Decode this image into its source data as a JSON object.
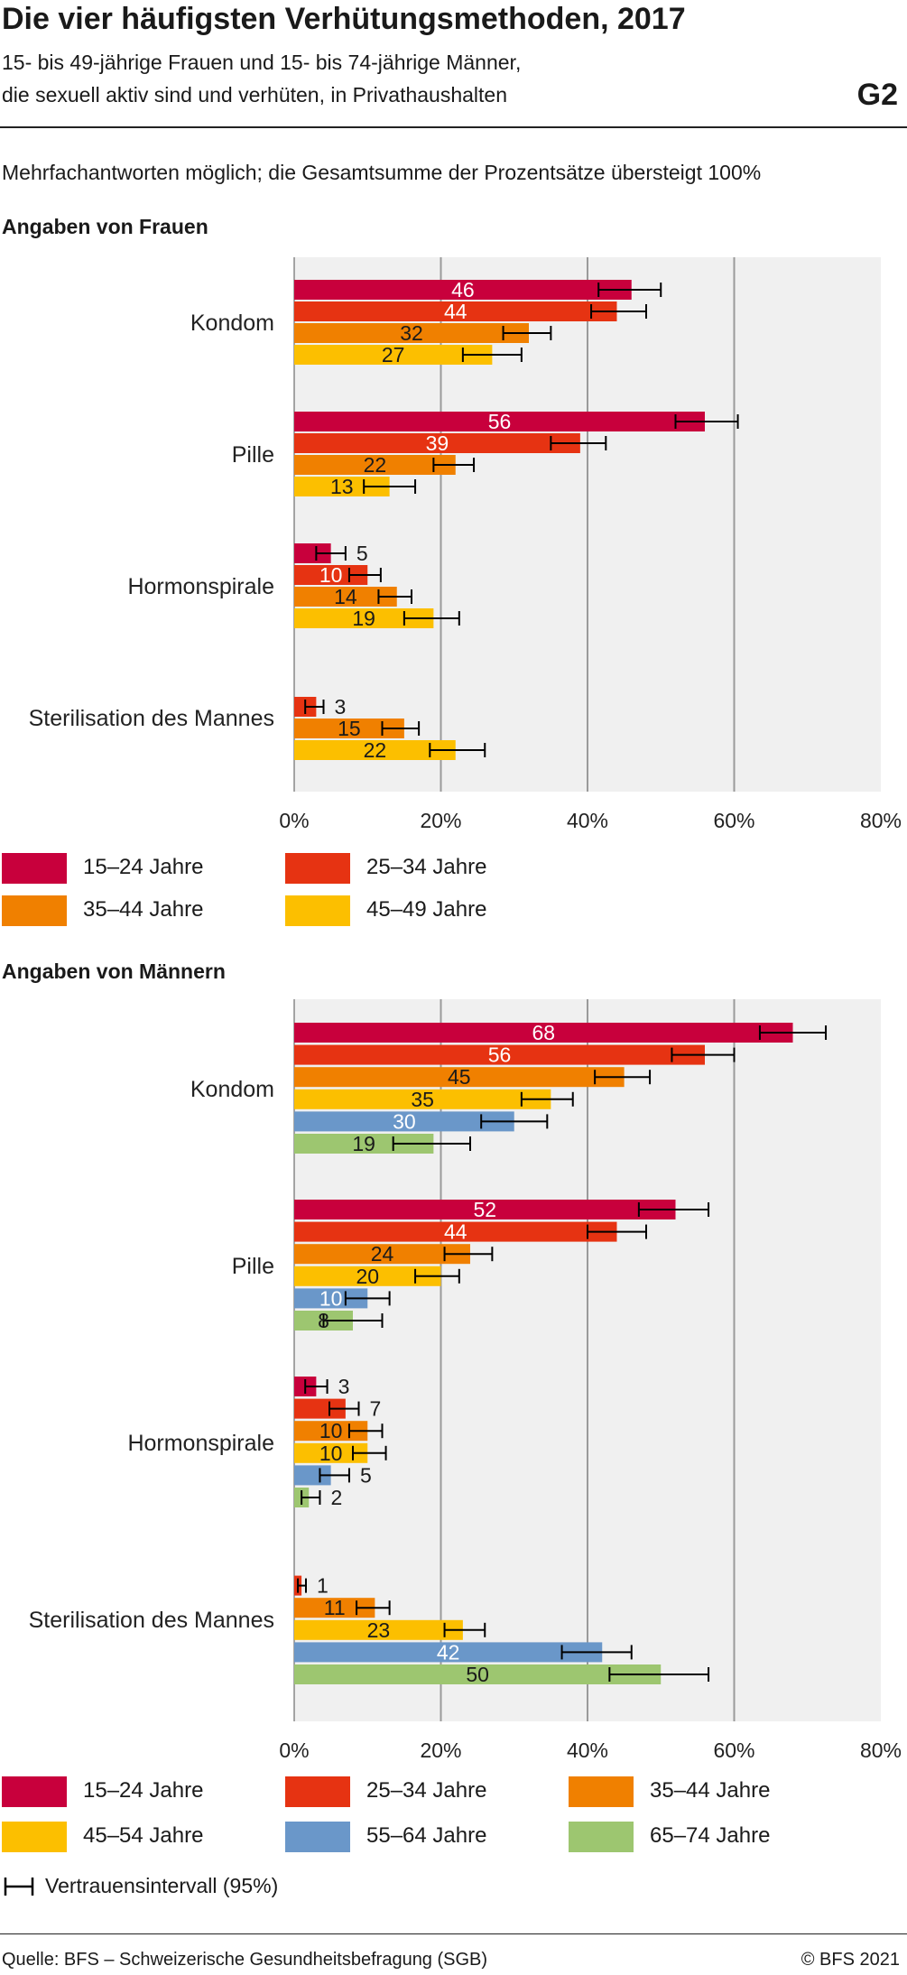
{
  "header": {
    "title": "Die vier häufigsten Verhütungsmethoden, 2017",
    "subtitle_line1": "15- bis 49-jährige Frauen und 15- bis 74-jährige Männer,",
    "subtitle_line2": "die sexuell aktiv sind und verhüten, in Privathaushalten",
    "figure_id": "G2"
  },
  "note": "Mehrfachantworten möglich; die Gesamtsumme der Prozentsätze übersteigt 100%",
  "chart_data": [
    {
      "type": "bar",
      "orientation": "horizontal",
      "title": "Angaben von Frauen",
      "categories": [
        "Kondom",
        "Pille",
        "Hormonspirale",
        "Sterilisation des Mannes"
      ],
      "xlim": [
        0,
        80
      ],
      "xticks": [
        "0%",
        "20%",
        "40%",
        "60%",
        "80%"
      ],
      "grid": true,
      "legend_position": "bottom",
      "series": [
        {
          "name": "15–24 Jahre",
          "color": "#c8003c",
          "values": [
            46,
            56,
            5,
            null
          ],
          "ci_low": [
            41.5,
            52,
            3,
            null
          ],
          "ci_high": [
            50,
            60.5,
            7,
            null
          ]
        },
        {
          "name": "25–34 Jahre",
          "color": "#e63312",
          "values": [
            44,
            39,
            10,
            3
          ],
          "ci_low": [
            40.5,
            35,
            7.5,
            1.5
          ],
          "ci_high": [
            48,
            42.5,
            11.8,
            4
          ]
        },
        {
          "name": "35–44 Jahre",
          "color": "#f08000",
          "values": [
            32,
            22,
            14,
            15
          ],
          "ci_low": [
            28.5,
            19,
            11.5,
            12
          ],
          "ci_high": [
            35,
            24.5,
            16,
            17
          ]
        },
        {
          "name": "45–49 Jahre",
          "color": "#fcbf00",
          "values": [
            27,
            13,
            19,
            22
          ],
          "ci_low": [
            23,
            9.5,
            15,
            18.5
          ],
          "ci_high": [
            31,
            16.5,
            22.5,
            26
          ]
        }
      ]
    },
    {
      "type": "bar",
      "orientation": "horizontal",
      "title": "Angaben von Männern",
      "categories": [
        "Kondom",
        "Pille",
        "Hormonspirale",
        "Sterilisation des Mannes"
      ],
      "xlim": [
        0,
        80
      ],
      "xticks": [
        "0%",
        "20%",
        "40%",
        "60%",
        "80%"
      ],
      "grid": true,
      "legend_position": "bottom",
      "series": [
        {
          "name": "15–24 Jahre",
          "color": "#c8003c",
          "values": [
            68,
            52,
            3,
            null
          ],
          "ci_low": [
            63.5,
            47,
            1.5,
            null
          ],
          "ci_high": [
            72.5,
            56.5,
            4.5,
            null
          ]
        },
        {
          "name": "25–34 Jahre",
          "color": "#e63312",
          "values": [
            56,
            44,
            7,
            1
          ],
          "ci_low": [
            51.5,
            40,
            4.8,
            0.5
          ],
          "ci_high": [
            60,
            48,
            8.8,
            1.6
          ]
        },
        {
          "name": "35–44 Jahre",
          "color": "#f08000",
          "values": [
            45,
            24,
            10,
            11
          ],
          "ci_low": [
            41,
            20.5,
            7.5,
            8.5
          ],
          "ci_high": [
            48.5,
            27,
            12,
            13
          ]
        },
        {
          "name": "45–54 Jahre",
          "color": "#fcbf00",
          "values": [
            35,
            20,
            10,
            23
          ],
          "ci_low": [
            31,
            16.5,
            8,
            20.5
          ],
          "ci_high": [
            38,
            22.5,
            12.5,
            26
          ]
        },
        {
          "name": "55–64 Jahre",
          "color": "#6a97c9",
          "values": [
            30,
            10,
            5,
            42
          ],
          "ci_low": [
            25.5,
            7,
            3.5,
            36.5
          ],
          "ci_high": [
            34.5,
            13,
            7.5,
            46
          ]
        },
        {
          "name": "65–74 Jahre",
          "color": "#9dc670",
          "values": [
            19,
            8,
            2,
            50
          ],
          "ci_low": [
            13.5,
            4,
            1,
            43
          ],
          "ci_high": [
            24,
            12,
            3.5,
            56.5
          ]
        }
      ]
    }
  ],
  "ci_legend_label": "Vertrauensintervall (95%)",
  "footer": {
    "source": "Quelle: BFS – Schweizerische Gesundheitsbefragung (SGB)",
    "copyright": "© BFS 2021"
  }
}
